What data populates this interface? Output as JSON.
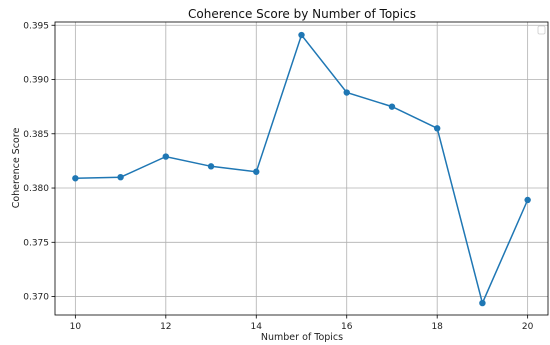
{
  "chart_data": {
    "type": "line",
    "title": "Coherence Score by Number of Topics",
    "xlabel": "Number of Topics",
    "ylabel": "Coherence Score",
    "xlim": [
      9.55,
      20.45
    ],
    "ylim": [
      0.3683,
      0.3953
    ],
    "xticks": [
      10,
      12,
      14,
      16,
      18,
      20
    ],
    "yticks": [
      0.37,
      0.375,
      0.38,
      0.385,
      0.39,
      0.395
    ],
    "ytick_labels": [
      "0.370",
      "0.375",
      "0.380",
      "0.385",
      "0.390",
      "0.395"
    ],
    "grid": true,
    "legend": "top-right (empty)",
    "colors": {
      "line": "#1f77b4",
      "grid": "#b0b0b0",
      "axes": "#000000"
    },
    "series": [
      {
        "x": [
          10,
          11,
          12,
          13,
          14,
          15,
          16,
          17,
          18,
          19,
          20
        ],
        "values": [
          0.3809,
          0.381,
          0.3829,
          0.382,
          0.3815,
          0.3941,
          0.3888,
          0.3875,
          0.3855,
          0.3694,
          0.3789
        ]
      }
    ]
  }
}
